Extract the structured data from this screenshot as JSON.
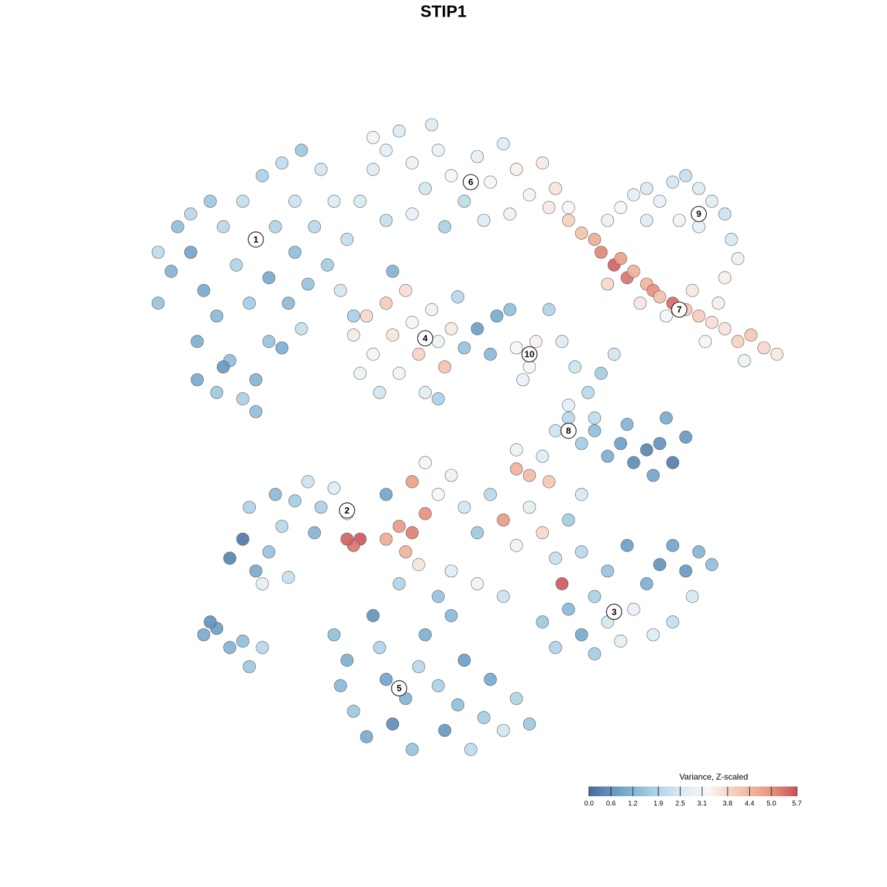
{
  "chart_data": {
    "type": "scatter",
    "title": "STIP1",
    "x": [
      5,
      3,
      8,
      10,
      12,
      9,
      14,
      12,
      16,
      18,
      20,
      17,
      15,
      13,
      16,
      19,
      22,
      25,
      28,
      24,
      21,
      24,
      27,
      30,
      32,
      29,
      26,
      23,
      20,
      11,
      8,
      6,
      3,
      31,
      33,
      22,
      25,
      9,
      13,
      18,
      34,
      36,
      38,
      40,
      42,
      44,
      46,
      48,
      50,
      52,
      54,
      56,
      58,
      60,
      62,
      64,
      66,
      38,
      42,
      47,
      53,
      57,
      36,
      45,
      63,
      66,
      68,
      70,
      71,
      73,
      74,
      75,
      76,
      78,
      79,
      80,
      82,
      84,
      86,
      88,
      90,
      92,
      94,
      96,
      98,
      85,
      89,
      72,
      77,
      81,
      93,
      87,
      72,
      74,
      76,
      78,
      80,
      82,
      84,
      86,
      88,
      90,
      91,
      92,
      90,
      86,
      83,
      78,
      33,
      35,
      36,
      38,
      39,
      40,
      41,
      42,
      43,
      44,
      45,
      46,
      47,
      48,
      49,
      46,
      37,
      34,
      50,
      39,
      58,
      60,
      61,
      59,
      55,
      57,
      63,
      65,
      67,
      69,
      71,
      73,
      66,
      70,
      52,
      54,
      64,
      66,
      68,
      70,
      72,
      74,
      76,
      78,
      80,
      82,
      84,
      79,
      75,
      81,
      62,
      60,
      58,
      14,
      16,
      18,
      20,
      22,
      24,
      26,
      28,
      30,
      32,
      34,
      33,
      32,
      19,
      23,
      27,
      17,
      21,
      38,
      40,
      42,
      44,
      41,
      43,
      46,
      42,
      48,
      50,
      52,
      54,
      56,
      58,
      60,
      62,
      64,
      66,
      68,
      48,
      52,
      56,
      46,
      40,
      38,
      44,
      63,
      58,
      62,
      64,
      66,
      68,
      70,
      72,
      74,
      76,
      78,
      80,
      82,
      84,
      86,
      88,
      85,
      82,
      79,
      72,
      68,
      75,
      70,
      65,
      30,
      32,
      31,
      33,
      35,
      37,
      38,
      39,
      41,
      42,
      43,
      44,
      46,
      47,
      49,
      50,
      51,
      53,
      54,
      56,
      58,
      60,
      36,
      48,
      10,
      12,
      14,
      16,
      17,
      19,
      11
    ],
    "y": [
      77,
      72,
      80,
      74,
      70,
      66,
      63,
      58,
      57,
      60,
      66,
      72,
      78,
      84,
      88,
      92,
      94,
      96,
      93,
      88,
      84,
      80,
      84,
      88,
      82,
      78,
      75,
      72,
      76,
      88,
      86,
      84,
      80,
      74,
      70,
      65,
      68,
      60,
      62,
      55,
      88,
      93,
      96,
      99,
      94,
      90,
      96,
      92,
      88,
      95,
      91,
      97,
      93,
      89,
      94,
      90,
      87,
      85,
      86,
      84,
      85,
      86,
      98,
      100,
      87,
      85,
      83,
      82,
      80,
      78,
      79,
      76,
      77,
      75,
      74,
      73,
      72,
      71,
      70,
      69,
      68,
      66,
      67,
      65,
      64,
      74,
      72,
      75,
      72,
      70,
      63,
      66,
      85,
      87,
      89,
      90,
      88,
      91,
      92,
      90,
      88,
      86,
      82,
      79,
      76,
      84,
      85,
      85,
      67,
      70,
      64,
      72,
      67,
      61,
      74,
      69,
      64,
      58,
      71,
      66,
      62,
      68,
      73,
      57,
      58,
      61,
      65,
      77,
      65,
      62,
      66,
      60,
      70,
      71,
      71,
      66,
      62,
      58,
      61,
      64,
      56,
      54,
      68,
      64,
      52,
      54,
      50,
      52,
      48,
      50,
      47,
      49,
      50,
      47,
      51,
      45,
      53,
      54,
      48,
      45,
      49,
      32,
      35,
      30,
      33,
      37,
      41,
      44,
      40,
      43,
      39,
      35,
      34,
      35,
      28,
      29,
      36,
      40,
      42,
      35,
      37,
      36,
      39,
      33,
      31,
      42,
      44,
      45,
      40,
      36,
      42,
      38,
      34,
      40,
      36,
      32,
      38,
      42,
      30,
      28,
      26,
      26,
      28,
      42,
      47,
      44,
      46,
      22,
      18,
      24,
      20,
      26,
      22,
      19,
      24,
      28,
      31,
      34,
      30,
      33,
      31,
      26,
      22,
      20,
      30,
      33,
      34,
      17,
      28,
      20,
      16,
      12,
      8,
      4,
      18,
      13,
      6,
      10,
      2,
      15,
      20,
      12,
      5,
      9,
      16,
      2,
      7,
      13,
      5,
      10,
      6,
      23,
      23,
      20,
      21,
      18,
      19,
      15,
      18,
      22
    ],
    "values": [
      1.2,
      1.5,
      0.9,
      1.0,
      1.3,
      1.1,
      1.4,
      1.6,
      1.8,
      1.2,
      1.5,
      1.7,
      1.9,
      2.0,
      2.2,
      1.8,
      2.1,
      1.6,
      2.4,
      2.3,
      1.9,
      1.4,
      2.0,
      2.6,
      2.2,
      1.7,
      1.5,
      1.3,
      1.0,
      1.6,
      2.0,
      1.4,
      2.1,
      2.4,
      1.8,
      1.1,
      2.2,
      1.0,
      0.7,
      1.4,
      2.5,
      2.7,
      2.8,
      2.6,
      3.0,
      2.4,
      2.9,
      3.2,
      2.1,
      2.8,
      3.3,
      2.6,
      3.4,
      3.1,
      3.5,
      3.6,
      3.3,
      2.2,
      2.9,
      1.8,
      2.6,
      3.0,
      3.1,
      2.7,
      3.5,
      3.9,
      4.2,
      4.6,
      5.1,
      5.5,
      4.8,
      5.3,
      4.5,
      4.4,
      5.0,
      4.2,
      5.4,
      4.1,
      4.0,
      3.7,
      3.6,
      3.9,
      4.1,
      3.8,
      3.5,
      3.5,
      3.4,
      3.8,
      3.6,
      3.2,
      3.0,
      3.3,
      3.0,
      3.3,
      2.8,
      2.5,
      2.9,
      2.4,
      2.2,
      2.6,
      2.7,
      2.3,
      2.5,
      2.9,
      3.4,
      2.8,
      3.1,
      2.7,
      3.5,
      3.8,
      3.3,
      4.0,
      3.6,
      3.1,
      3.7,
      3.2,
      3.9,
      2.7,
      3.4,
      3.0,
      4.2,
      3.5,
      2.0,
      1.8,
      2.4,
      3.0,
      1.5,
      1.2,
      3.2,
      3.3,
      3.4,
      2.9,
      1.0,
      1.4,
      1.9,
      2.6,
      2.3,
      2.0,
      1.7,
      2.4,
      2.8,
      2.1,
      0.8,
      1.3,
      2.3,
      2.0,
      1.7,
      1.4,
      1.1,
      0.8,
      0.5,
      0.4,
      0.6,
      0.3,
      0.7,
      0.9,
      1.2,
      1.0,
      2.7,
      4.3,
      3.0,
      0.4,
      0.2,
      1.0,
      1.5,
      2.0,
      1.7,
      2.3,
      1.8,
      2.6,
      2.9,
      5.6,
      5.3,
      5.5,
      2.8,
      2.2,
      1.2,
      1.9,
      1.3,
      4.6,
      4.9,
      5.2,
      5.0,
      4.5,
      3.6,
      3.2,
      4.8,
      3.0,
      2.4,
      1.6,
      2.0,
      4.9,
      3.4,
      2.8,
      3.8,
      2.2,
      1.7,
      2.5,
      2.7,
      3.1,
      2.3,
      1.5,
      1.9,
      0.9,
      3.3,
      4.1,
      4.5,
      1.6,
      1.9,
      1.3,
      1.0,
      1.8,
      2.4,
      2.8,
      2.9,
      1.1,
      0.6,
      0.9,
      0.7,
      1.2,
      1.4,
      2.5,
      2.2,
      2.6,
      1.5,
      2.0,
      0.8,
      1.7,
      5.6,
      1.4,
      1.1,
      1.3,
      1.6,
      1.0,
      1.9,
      0.9,
      0.5,
      1.2,
      1.5,
      2.0,
      1.1,
      1.8,
      0.7,
      1.4,
      0.8,
      2.1,
      1.7,
      1.0,
      2.4,
      1.9,
      1.6,
      0.6,
      1.3,
      1.0,
      0.8,
      1.2,
      1.4,
      1.6,
      2.0,
      0.6
    ],
    "xlim": [
      0,
      100
    ],
    "ylim": [
      0,
      100
    ],
    "annotations": [
      {
        "text": "1",
        "x": 18,
        "y": 82
      },
      {
        "text": "2",
        "x": 32,
        "y": 39.5
      },
      {
        "text": "3",
        "x": 73,
        "y": 23.6
      },
      {
        "text": "4",
        "x": 44,
        "y": 66.5
      },
      {
        "text": "5",
        "x": 40,
        "y": 11.6
      },
      {
        "text": "6",
        "x": 51,
        "y": 91
      },
      {
        "text": "7",
        "x": 83,
        "y": 71
      },
      {
        "text": "8",
        "x": 66,
        "y": 52
      },
      {
        "text": "9",
        "x": 86,
        "y": 86
      },
      {
        "text": "10",
        "x": 60,
        "y": 64
      }
    ],
    "colorbar": {
      "title": "Variance, Z-scaled",
      "lim": [
        0,
        5.7
      ],
      "colors": [
        "#4a6b9a",
        "#6fa0c9",
        "#9ecae1",
        "#d6e8f2",
        "#f7f7f7",
        "#f5c9b3",
        "#e99c85",
        "#c9515a"
      ],
      "ticks": [
        {
          "value": 0,
          "label": "0.0"
        },
        0.6,
        1.2,
        1.9,
        2.5,
        3.1,
        3.8,
        4.4,
        {
          "value": 5,
          "label": "5.0"
        },
        5.7
      ]
    }
  }
}
